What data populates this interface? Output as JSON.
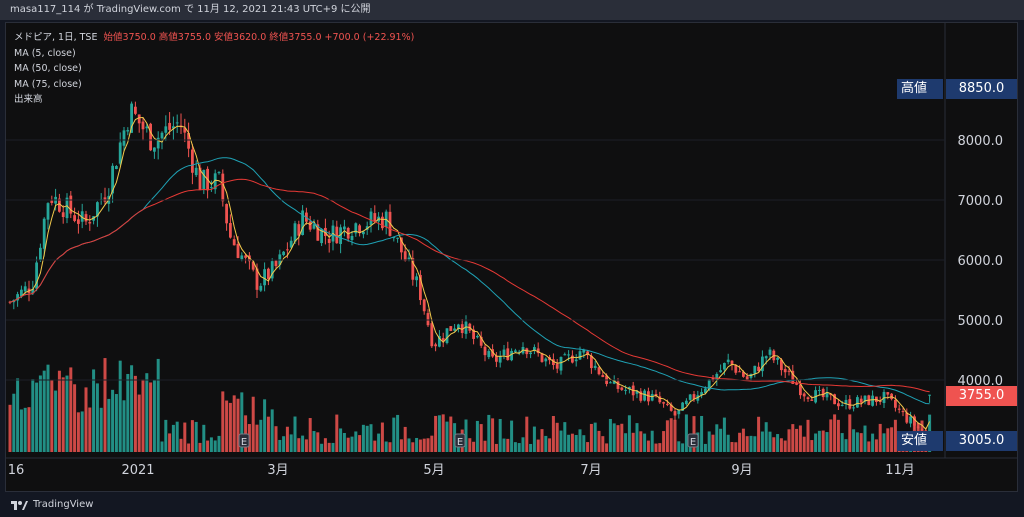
{
  "header": {
    "text": "masa117_114 が TradingView.com で 11月 12, 2021 21:43 UTC+9 に公開"
  },
  "legend": {
    "symbol": "メドピア, 1日, TSE",
    "ohlc": "始値3750.0  高値3755.0  安値3620.0  終値3755.0  +700.0 (+22.91%)",
    "ma5": "MA (5, close)",
    "ma50": "MA (50, close)",
    "ma75": "MA (75, close)",
    "volume": "出来高"
  },
  "footer": {
    "brand": "TradingView"
  },
  "colors": {
    "up": "#26a69a",
    "down": "#ef5350",
    "ma5": "#f2c94c",
    "ma50": "#1fa2b5",
    "ma75": "#e53935",
    "bg": "#0f0f10"
  },
  "chart_data": {
    "type": "candlestick",
    "title": "メドピア, 1日, TSE",
    "y_axis": {
      "ticks": [
        8000,
        7000,
        6000,
        5000,
        4000
      ],
      "range": [
        3000,
        9100
      ],
      "position": "right"
    },
    "x_axis": {
      "ticks": [
        "16",
        "2021",
        "3月",
        "5月",
        "7月",
        "9月",
        "11月"
      ]
    },
    "price_tags": [
      {
        "label": "高値",
        "value": "8850.0"
      },
      {
        "label": "",
        "value": "3755.0"
      },
      {
        "label": "安値",
        "value": "3005.0"
      }
    ],
    "earnings_markers": [
      "E",
      "E",
      "E"
    ],
    "close_path": [
      {
        "date": "2020-12-16",
        "close": 5300
      },
      {
        "date": "2020-12-24",
        "close": 5600
      },
      {
        "date": "2020-12-30",
        "close": 7100
      },
      {
        "date": "2021-01-12",
        "close": 6600
      },
      {
        "date": "2021-01-20",
        "close": 7200
      },
      {
        "date": "2021-01-28",
        "close": 8500
      },
      {
        "date": "2021-02-05",
        "close": 8000
      },
      {
        "date": "2021-02-15",
        "close": 8300
      },
      {
        "date": "2021-02-22",
        "close": 7300
      },
      {
        "date": "2021-03-01",
        "close": 7300
      },
      {
        "date": "2021-03-05",
        "close": 6400
      },
      {
        "date": "2021-03-15",
        "close": 5600
      },
      {
        "date": "2021-03-22",
        "close": 5900
      },
      {
        "date": "2021-03-31",
        "close": 6700
      },
      {
        "date": "2021-04-09",
        "close": 6400
      },
      {
        "date": "2021-04-19",
        "close": 6600
      },
      {
        "date": "2021-04-30",
        "close": 6700
      },
      {
        "date": "2021-05-12",
        "close": 5500
      },
      {
        "date": "2021-05-17",
        "close": 4600
      },
      {
        "date": "2021-05-26",
        "close": 5000
      },
      {
        "date": "2021-06-07",
        "close": 4300
      },
      {
        "date": "2021-06-18",
        "close": 4600
      },
      {
        "date": "2021-06-30",
        "close": 4200
      },
      {
        "date": "2021-07-09",
        "close": 4500
      },
      {
        "date": "2021-07-20",
        "close": 3900
      },
      {
        "date": "2021-08-04",
        "close": 3700
      },
      {
        "date": "2021-08-12",
        "close": 3400
      },
      {
        "date": "2021-08-20",
        "close": 3800
      },
      {
        "date": "2021-08-31",
        "close": 4300
      },
      {
        "date": "2021-09-07",
        "close": 4000
      },
      {
        "date": "2021-09-14",
        "close": 4450
      },
      {
        "date": "2021-09-27",
        "close": 3800
      },
      {
        "date": "2021-10-12",
        "close": 3600
      },
      {
        "date": "2021-10-26",
        "close": 3700
      },
      {
        "date": "2021-11-02",
        "close": 3400
      },
      {
        "date": "2021-11-11",
        "close": 3055
      },
      {
        "date": "2021-11-12",
        "close": 3755
      }
    ]
  }
}
